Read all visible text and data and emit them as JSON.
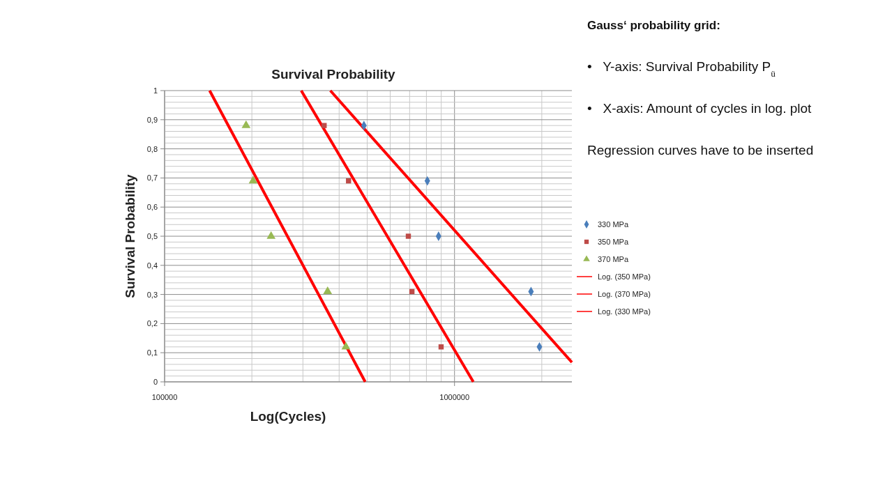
{
  "chart_data": {
    "type": "scatter",
    "title": "Survival Probability",
    "xlabel": "Log(Cycles)",
    "ylabel": "Survival Probability",
    "log": "x",
    "grid": true,
    "legend": "right",
    "xlim": [
      100000,
      2540000
    ],
    "xticks": [
      100000,
      {
        "value": 200000,
        "label": null
      },
      {
        "value": 300000,
        "label": null
      },
      {
        "value": 400000,
        "label": null
      },
      {
        "value": 500000,
        "label": null
      },
      {
        "value": 600000,
        "label": null
      },
      {
        "value": 700000,
        "label": null
      },
      {
        "value": 800000,
        "label": null
      },
      {
        "value": 900000,
        "label": null
      },
      1000000,
      {
        "value": 2000000,
        "label": null
      }
    ],
    "ylim": [
      0,
      1
    ],
    "yticks": [
      {
        "value": 0,
        "label": "0"
      },
      {
        "value": 0.02,
        "label": null
      },
      {
        "value": 0.04,
        "label": null
      },
      {
        "value": 0.06,
        "label": null
      },
      {
        "value": 0.08,
        "label": null
      },
      {
        "value": 0.1,
        "label": "0,1"
      },
      {
        "value": 0.12,
        "label": null
      },
      {
        "value": 0.14,
        "label": null
      },
      {
        "value": 0.16,
        "label": null
      },
      {
        "value": 0.18,
        "label": null
      },
      {
        "value": 0.2,
        "label": "0,2"
      },
      {
        "value": 0.22,
        "label": null
      },
      {
        "value": 0.24,
        "label": null
      },
      {
        "value": 0.26,
        "label": null
      },
      {
        "value": 0.28,
        "label": null
      },
      {
        "value": 0.3,
        "label": "0,3"
      },
      {
        "value": 0.32,
        "label": null
      },
      {
        "value": 0.34,
        "label": null
      },
      {
        "value": 0.36,
        "label": null
      },
      {
        "value": 0.38,
        "label": null
      },
      {
        "value": 0.4,
        "label": "0,4"
      },
      {
        "value": 0.42,
        "label": null
      },
      {
        "value": 0.44,
        "label": null
      },
      {
        "value": 0.46,
        "label": null
      },
      {
        "value": 0.48,
        "label": null
      },
      {
        "value": 0.5,
        "label": "0,5"
      },
      {
        "value": 0.52,
        "label": null
      },
      {
        "value": 0.54,
        "label": null
      },
      {
        "value": 0.56,
        "label": null
      },
      {
        "value": 0.58,
        "label": null
      },
      {
        "value": 0.6,
        "label": "0,6"
      },
      {
        "value": 0.62,
        "label": null
      },
      {
        "value": 0.64,
        "label": null
      },
      {
        "value": 0.66,
        "label": null
      },
      {
        "value": 0.68,
        "label": null
      },
      {
        "value": 0.7,
        "label": "0,7"
      },
      {
        "value": 0.72,
        "label": null
      },
      {
        "value": 0.74,
        "label": null
      },
      {
        "value": 0.76,
        "label": null
      },
      {
        "value": 0.78,
        "label": null
      },
      {
        "value": 0.8,
        "label": "0,8"
      },
      {
        "value": 0.82,
        "label": null
      },
      {
        "value": 0.84,
        "label": null
      },
      {
        "value": 0.86,
        "label": null
      },
      {
        "value": 0.88,
        "label": null
      },
      {
        "value": 0.9,
        "label": "0,9"
      },
      {
        "value": 0.92,
        "label": null
      },
      {
        "value": 0.94,
        "label": null
      },
      {
        "value": 0.96,
        "label": null
      },
      {
        "value": 0.98,
        "label": null
      },
      {
        "value": 1,
        "label": "1"
      }
    ],
    "series": [
      {
        "name": "330 MPa",
        "type": "scatter",
        "marker": "diamond",
        "color": "#4a7ebb",
        "x": [
          487000,
          806000,
          881000,
          1836000,
          1963000
        ],
        "values": [
          0.88,
          0.69,
          0.5,
          0.31,
          0.12
        ]
      },
      {
        "name": "350 MPa",
        "type": "scatter",
        "marker": "square",
        "color": "#be4b48",
        "x": [
          355000,
          431000,
          693000,
          713000,
          899000
        ],
        "values": [
          0.88,
          0.69,
          0.5,
          0.31,
          0.12
        ]
      },
      {
        "name": "370 MPa",
        "type": "scatter",
        "marker": "triangle",
        "color": "#98b954",
        "x": [
          191000,
          202000,
          233000,
          365000,
          422000
        ],
        "values": [
          0.88,
          0.69,
          0.5,
          0.31,
          0.12
        ]
      },
      {
        "name": "Log. (350 MPa)",
        "type": "line",
        "marker": "none",
        "line_style": "solid",
        "color": "#ff0000",
        "x": [
          296000,
          1161000
        ],
        "values": [
          1,
          0
        ]
      },
      {
        "name": "Log. (370 MPa)",
        "type": "line",
        "marker": "none",
        "line_style": "solid",
        "color": "#ff0000",
        "x": [
          143000,
          492000
        ],
        "values": [
          1,
          0
        ]
      },
      {
        "name": "Log. (330 MPa)",
        "type": "line",
        "marker": "none",
        "line_style": "solid",
        "color": "#ff0000",
        "x": [
          373000,
          2540000
        ],
        "values": [
          1,
          0.067
        ]
      }
    ],
    "annotations": [
      "Gauss‘ probability grid:",
      "•   Y-axis: Survival Probability P$_{ü}$",
      "•   X-axis: Amount of cycles in log. plot",
      "Regression curves have to be inserted"
    ]
  }
}
